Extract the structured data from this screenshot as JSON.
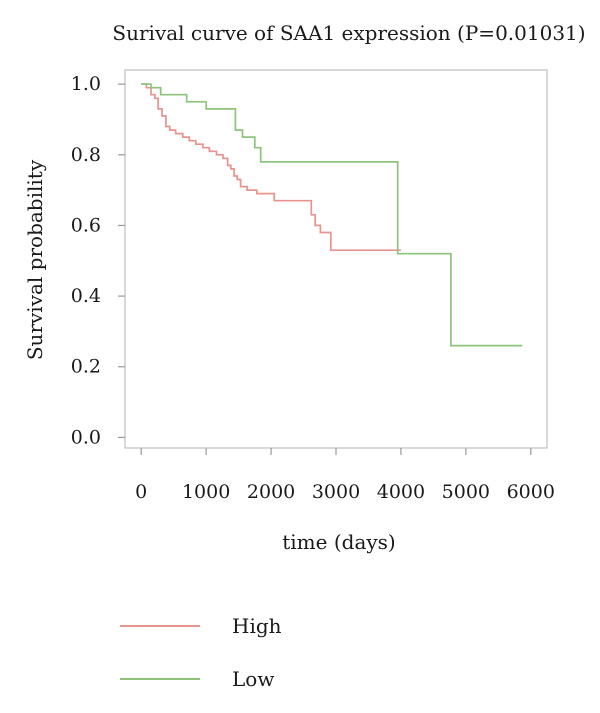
{
  "chart_data": {
    "type": "line",
    "title": "Surival curve of SAA1 expression (P=0.01031)",
    "xlabel": "time (days)",
    "ylabel": "Survival probability",
    "xlim": [
      -250,
      6250
    ],
    "ylim": [
      -0.03,
      1.04
    ],
    "xticks": [
      0,
      1000,
      2000,
      3000,
      4000,
      5000,
      6000
    ],
    "xtick_labels": [
      "0",
      "1000",
      "2000",
      "3000",
      "4000",
      "5000",
      "6000"
    ],
    "yticks": [
      0.0,
      0.2,
      0.4,
      0.6,
      0.8,
      1.0
    ],
    "ytick_labels": [
      "0.0",
      "0.2",
      "0.4",
      "0.6",
      "0.8",
      "1.0"
    ],
    "grid": false,
    "legend_position": "bottom",
    "step": true,
    "series": [
      {
        "name": "High",
        "color": "#e8938e",
        "x": [
          0,
          80,
          150,
          210,
          260,
          320,
          380,
          440,
          530,
          640,
          740,
          840,
          950,
          1050,
          1160,
          1260,
          1330,
          1380,
          1430,
          1480,
          1530,
          1630,
          1780,
          1900,
          2050,
          2500,
          2620,
          2680,
          2760,
          2920,
          3970,
          4000
        ],
        "y": [
          1.0,
          0.99,
          0.97,
          0.96,
          0.93,
          0.91,
          0.88,
          0.87,
          0.86,
          0.85,
          0.84,
          0.83,
          0.82,
          0.81,
          0.8,
          0.79,
          0.77,
          0.76,
          0.74,
          0.73,
          0.71,
          0.7,
          0.69,
          0.69,
          0.67,
          0.67,
          0.63,
          0.6,
          0.58,
          0.53,
          0.53,
          0.53
        ]
      },
      {
        "name": "Low",
        "color": "#8cc47c",
        "x": [
          0,
          150,
          300,
          700,
          1000,
          1450,
          1560,
          1750,
          1840,
          3950,
          4770,
          5870
        ],
        "y": [
          1.0,
          0.99,
          0.97,
          0.95,
          0.93,
          0.87,
          0.85,
          0.82,
          0.78,
          0.52,
          0.26,
          0.26
        ]
      }
    ]
  }
}
